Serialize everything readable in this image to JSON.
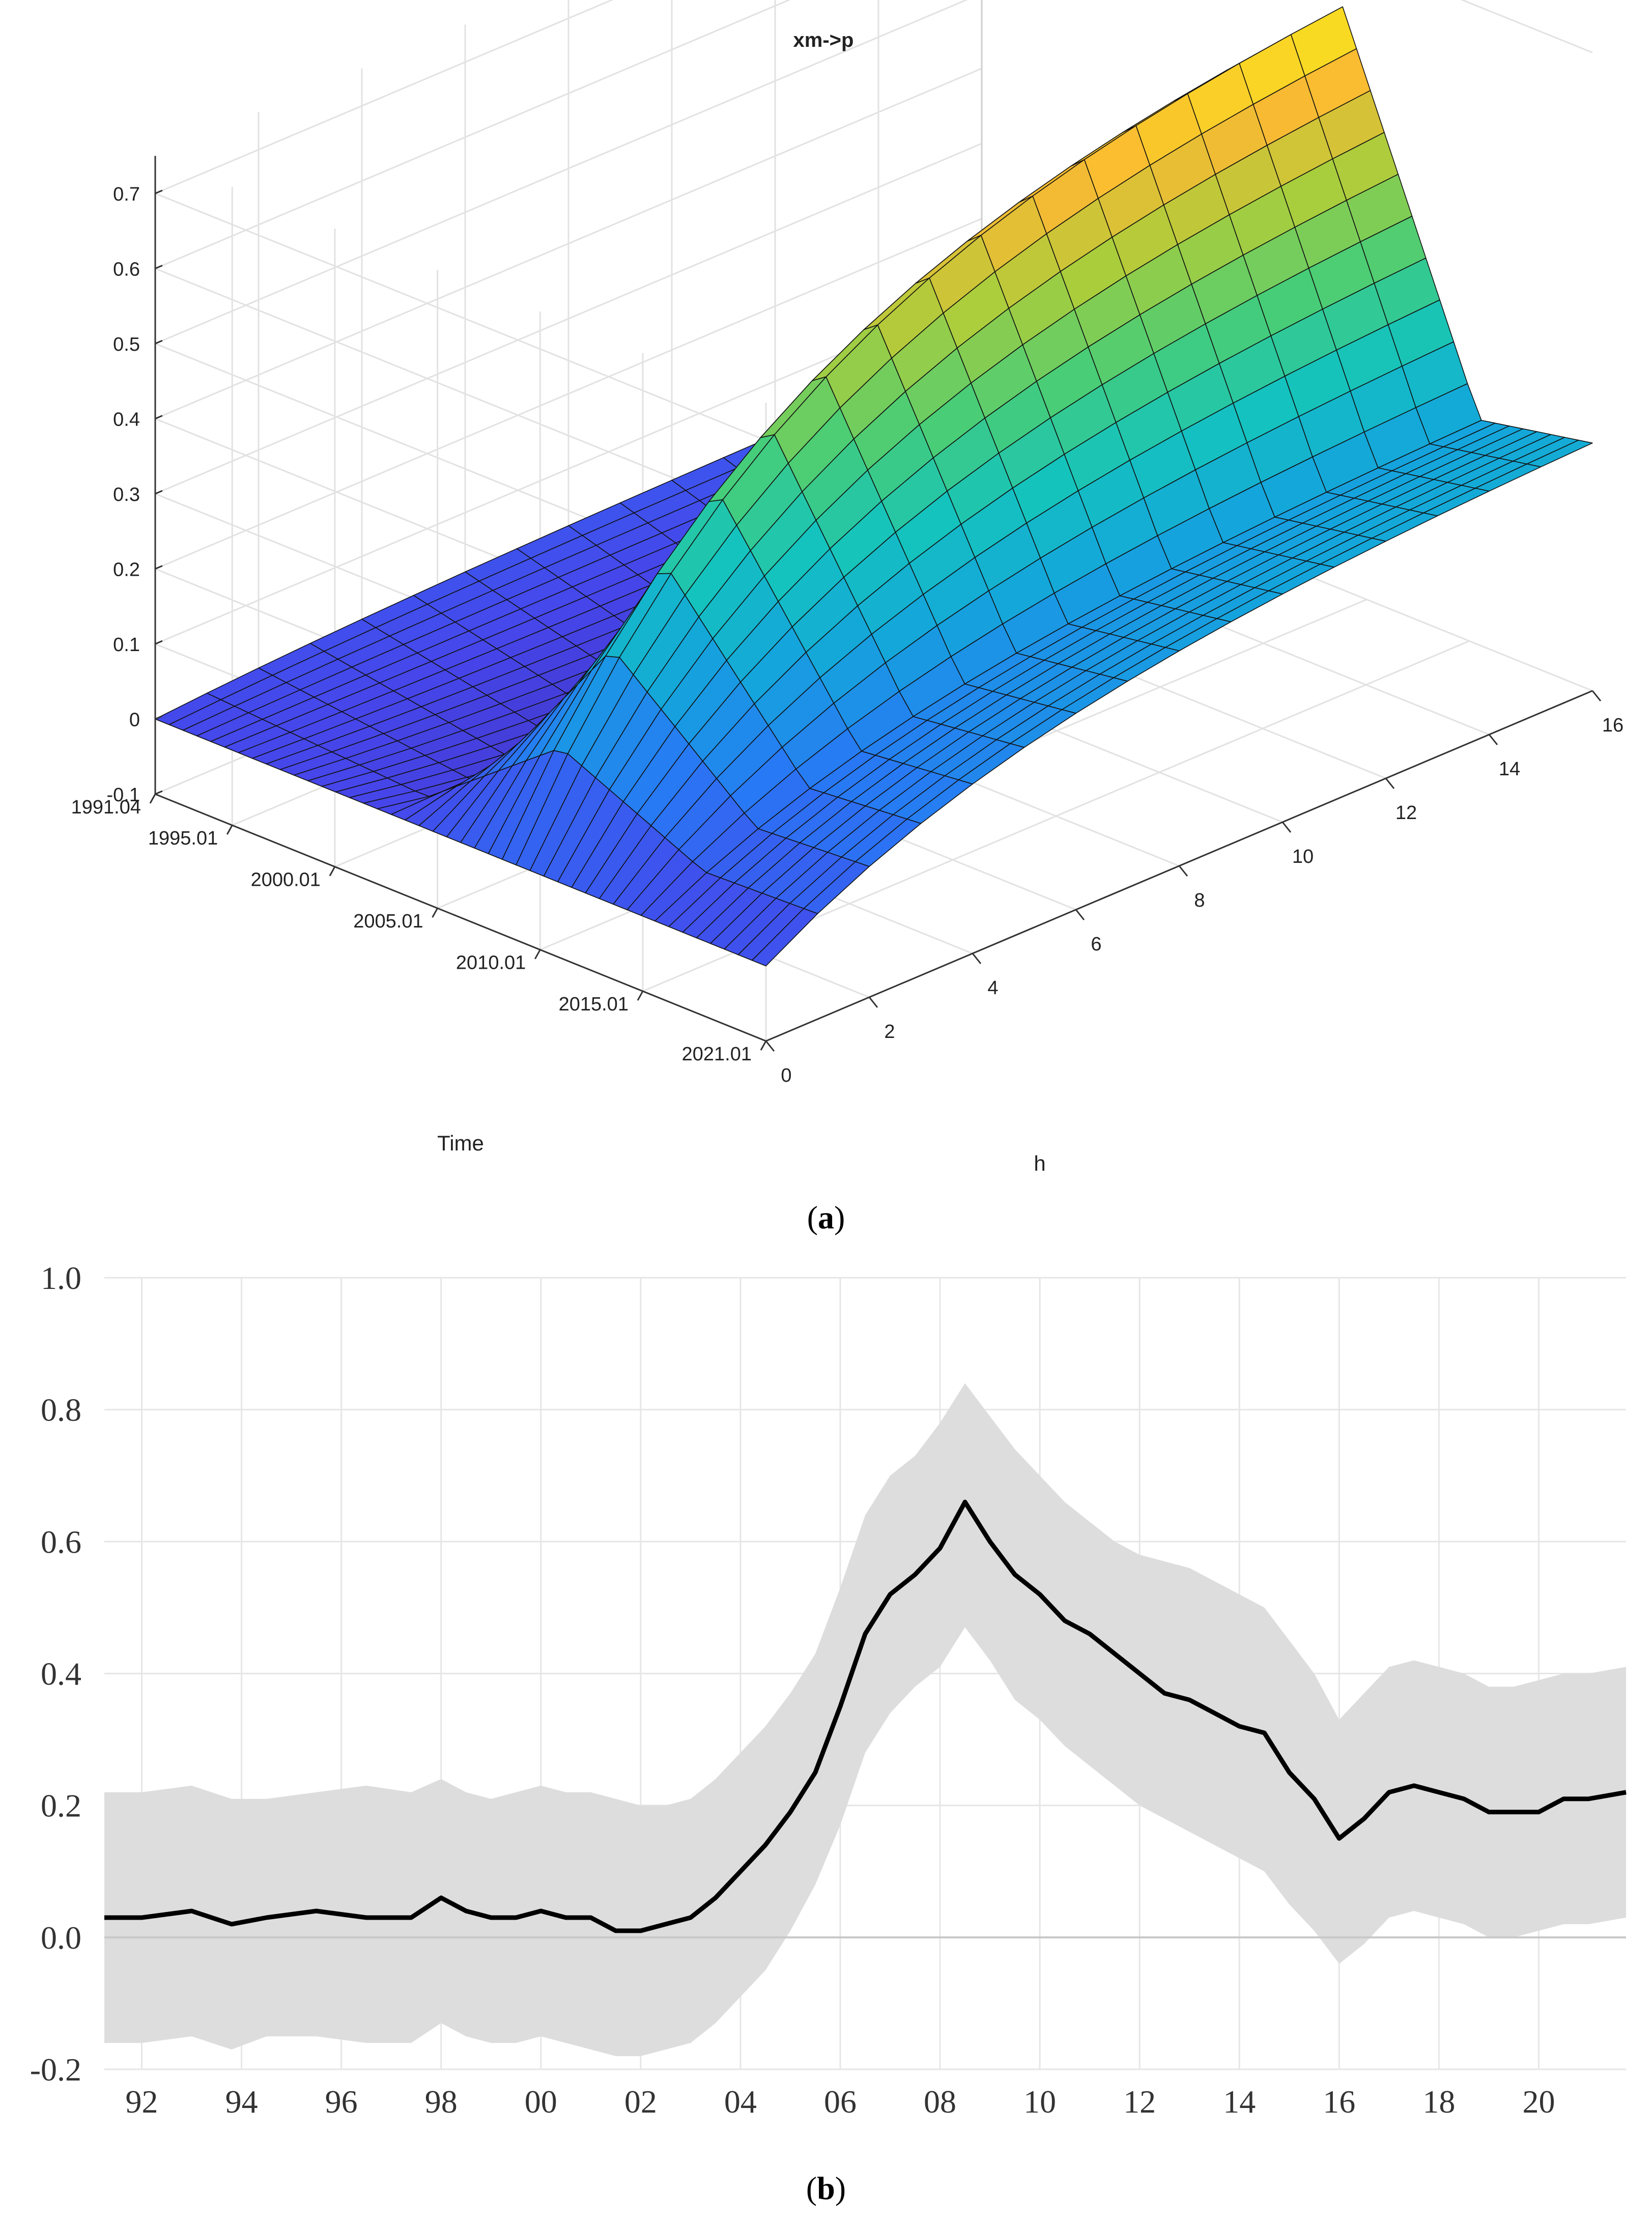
{
  "captions": {
    "a_open": "(",
    "a_letter": "a",
    "a_close": ")",
    "b_open": "(",
    "b_letter": "b",
    "b_close": ")"
  },
  "chart_data": [
    {
      "id": "a",
      "type": "surface3d",
      "title": "xm->p",
      "xlabel": "h",
      "ylabel": "Time",
      "zlim": [
        -0.1,
        0.7
      ],
      "z_ticks": [
        "0.7",
        "0.6",
        "0.5",
        "0.4",
        "0.3",
        "0.2",
        "0.1",
        "0",
        "-0.1"
      ],
      "h_ticks": [
        "0",
        "2",
        "4",
        "6",
        "8",
        "10",
        "12",
        "14",
        "16"
      ],
      "time_ticks": [
        "1991.04",
        "1995.01",
        "2000.01",
        "2005.01",
        "2010.01",
        "2015.01",
        "2021.01"
      ],
      "h_range": [
        0,
        16
      ],
      "time_range": [
        1991.25,
        2021.0
      ],
      "colormap": "parula",
      "description_values": {
        "peak_time": 2008.5,
        "peak_value_at_h16": 0.7,
        "value_1991_h16": 0.03,
        "value_2021_h16": 0.23,
        "dip_time": 2002.0,
        "dip_value": -0.08
      }
    },
    {
      "id": "b",
      "type": "line",
      "band": "confidence",
      "y_ticks": [
        "1.0",
        "0.8",
        "0.6",
        "0.4",
        "0.2",
        "0.0",
        "-0.2"
      ],
      "x_ticks": [
        "92",
        "94",
        "96",
        "98",
        "00",
        "02",
        "04",
        "06",
        "08",
        "10",
        "12",
        "14",
        "16",
        "18",
        "20"
      ],
      "ylim": [
        -0.2,
        1.0
      ],
      "xlim": [
        1991.25,
        2021.75
      ],
      "line_color": "#000000",
      "band_color": "#dddddd",
      "series": {
        "x": [
          1991.25,
          1992,
          1993,
          1993.8,
          1994.5,
          1995.5,
          1996.5,
          1997.4,
          1998,
          1998.5,
          1999,
          1999.5,
          2000,
          2000.5,
          2001,
          2001.5,
          2002,
          2002.5,
          2003,
          2003.5,
          2004,
          2004.5,
          2005,
          2005.5,
          2006,
          2006.5,
          2007,
          2007.5,
          2008,
          2008.5,
          2009,
          2009.5,
          2010,
          2010.5,
          2011,
          2011.5,
          2012,
          2012.5,
          2013,
          2013.5,
          2014,
          2014.5,
          2015,
          2015.5,
          2016,
          2016.5,
          2017,
          2017.5,
          2018,
          2018.5,
          2019,
          2019.5,
          2020,
          2020.5,
          2021,
          2021.75
        ],
        "mean": [
          0.03,
          0.03,
          0.04,
          0.02,
          0.03,
          0.04,
          0.03,
          0.03,
          0.06,
          0.04,
          0.03,
          0.03,
          0.04,
          0.03,
          0.03,
          0.01,
          0.01,
          0.02,
          0.03,
          0.06,
          0.1,
          0.14,
          0.19,
          0.25,
          0.35,
          0.46,
          0.52,
          0.55,
          0.59,
          0.66,
          0.6,
          0.55,
          0.52,
          0.48,
          0.46,
          0.43,
          0.4,
          0.37,
          0.36,
          0.34,
          0.32,
          0.31,
          0.25,
          0.21,
          0.15,
          0.18,
          0.22,
          0.23,
          0.22,
          0.21,
          0.19,
          0.19,
          0.19,
          0.21,
          0.21,
          0.22
        ],
        "upper": [
          0.22,
          0.22,
          0.23,
          0.21,
          0.21,
          0.22,
          0.23,
          0.22,
          0.24,
          0.22,
          0.21,
          0.22,
          0.23,
          0.22,
          0.22,
          0.21,
          0.2,
          0.2,
          0.21,
          0.24,
          0.28,
          0.32,
          0.37,
          0.43,
          0.53,
          0.64,
          0.7,
          0.73,
          0.78,
          0.84,
          0.79,
          0.74,
          0.7,
          0.66,
          0.63,
          0.6,
          0.58,
          0.57,
          0.56,
          0.54,
          0.52,
          0.5,
          0.45,
          0.4,
          0.33,
          0.37,
          0.41,
          0.42,
          0.41,
          0.4,
          0.38,
          0.38,
          0.39,
          0.4,
          0.4,
          0.41
        ],
        "lower": [
          -0.16,
          -0.16,
          -0.15,
          -0.17,
          -0.15,
          -0.15,
          -0.16,
          -0.16,
          -0.13,
          -0.15,
          -0.16,
          -0.16,
          -0.15,
          -0.16,
          -0.17,
          -0.18,
          -0.18,
          -0.17,
          -0.16,
          -0.13,
          -0.09,
          -0.05,
          0.01,
          0.08,
          0.17,
          0.28,
          0.34,
          0.38,
          0.41,
          0.47,
          0.42,
          0.36,
          0.33,
          0.29,
          0.26,
          0.23,
          0.2,
          0.18,
          0.16,
          0.14,
          0.12,
          0.1,
          0.05,
          0.01,
          -0.04,
          -0.01,
          0.03,
          0.04,
          0.03,
          0.02,
          0.0,
          0.0,
          0.01,
          0.02,
          0.02,
          0.03
        ]
      }
    }
  ]
}
